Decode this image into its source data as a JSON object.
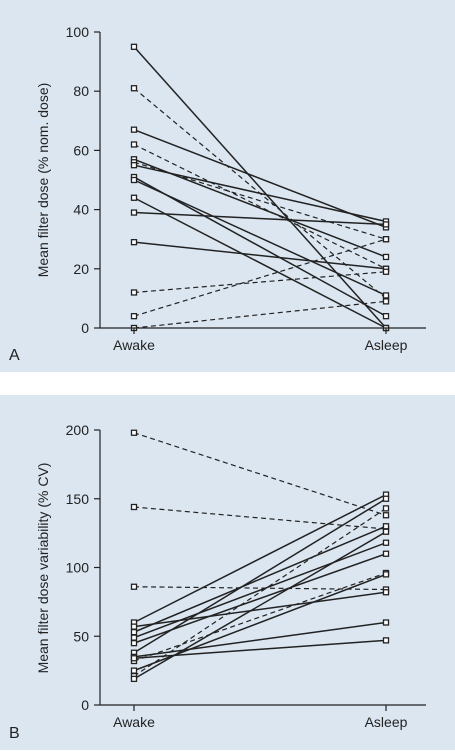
{
  "background": "#dbe6f1",
  "chart_data": [
    {
      "panel": "A",
      "type": "line",
      "categories": [
        "Awake",
        "Asleep"
      ],
      "ylabel": "Mean filter dose (% nom. dose)",
      "ylim": [
        0,
        100
      ],
      "yticks": [
        0,
        20,
        40,
        60,
        80,
        100
      ],
      "series": [
        {
          "values": [
            95,
            0
          ],
          "style": "solid"
        },
        {
          "values": [
            81,
            10
          ],
          "style": "dashed"
        },
        {
          "values": [
            67,
            34
          ],
          "style": "solid"
        },
        {
          "values": [
            62,
            20
          ],
          "style": "dashed"
        },
        {
          "values": [
            57,
            24
          ],
          "style": "solid"
        },
        {
          "values": [
            56,
            30
          ],
          "style": "dashed"
        },
        {
          "values": [
            55,
            36
          ],
          "style": "solid"
        },
        {
          "values": [
            51,
            4
          ],
          "style": "solid"
        },
        {
          "values": [
            50,
            11
          ],
          "style": "solid"
        },
        {
          "values": [
            44,
            0
          ],
          "style": "solid"
        },
        {
          "values": [
            39,
            35
          ],
          "style": "solid"
        },
        {
          "values": [
            29,
            20
          ],
          "style": "solid"
        },
        {
          "values": [
            12,
            19
          ],
          "style": "dashed"
        },
        {
          "values": [
            4,
            30
          ],
          "style": "dashed"
        },
        {
          "values": [
            0,
            9
          ],
          "style": "dashed"
        }
      ]
    },
    {
      "panel": "B",
      "type": "line",
      "categories": [
        "Awake",
        "Asleep"
      ],
      "ylabel": "Mean filter dose variability (% CV)",
      "ylim": [
        0,
        200
      ],
      "yticks": [
        0,
        50,
        100,
        150,
        200
      ],
      "series": [
        {
          "values": [
            198,
            138
          ],
          "style": "dashed"
        },
        {
          "values": [
            144,
            128
          ],
          "style": "dashed"
        },
        {
          "values": [
            86,
            84
          ],
          "style": "dashed"
        },
        {
          "values": [
            60,
            153
          ],
          "style": "solid"
        },
        {
          "values": [
            57,
            82
          ],
          "style": "solid"
        },
        {
          "values": [
            53,
            130
          ],
          "style": "solid"
        },
        {
          "values": [
            49,
            118
          ],
          "style": "solid"
        },
        {
          "values": [
            45,
            110
          ],
          "style": "solid"
        },
        {
          "values": [
            38,
            150
          ],
          "style": "solid"
        },
        {
          "values": [
            35,
            60
          ],
          "style": "solid"
        },
        {
          "values": [
            32,
            96
          ],
          "style": "dashed"
        },
        {
          "values": [
            34,
            47
          ],
          "style": "solid"
        },
        {
          "values": [
            25,
            95
          ],
          "style": "solid"
        },
        {
          "values": [
            21,
            143
          ],
          "style": "dashed"
        },
        {
          "values": [
            19,
            126
          ],
          "style": "solid"
        }
      ]
    }
  ]
}
